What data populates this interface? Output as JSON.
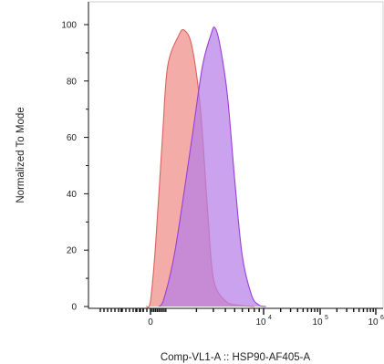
{
  "chart_data": {
    "type": "area",
    "title": "",
    "xlabel": "Comp-VL1-A :: HSP90-AF405-A",
    "ylabel": "Normalized To Mode",
    "xscale": "biexponential",
    "ylim": [
      0,
      100
    ],
    "y_ticks": [
      "0",
      "20",
      "40",
      "60",
      "80",
      "100"
    ],
    "x_ticks": [
      {
        "label": "0",
        "exp": "",
        "value": 0
      },
      {
        "label": "10",
        "exp": "4",
        "value": 10000
      },
      {
        "label": "10",
        "exp": "5",
        "value": 100000
      },
      {
        "label": "10",
        "exp": "6",
        "value": 1000000
      }
    ],
    "grid": false,
    "series": [
      {
        "color": "#f08c86",
        "fill_opacity": 0.72,
        "x": [
          -250,
          0,
          300,
          700,
          1000,
          1300,
          1500,
          1800,
          2200,
          2600,
          3000,
          4000,
          5500,
          8000
        ],
        "y": [
          0,
          2,
          22,
          60,
          85,
          96,
          98,
          92,
          70,
          35,
          10,
          2,
          0.5,
          0
        ]
      },
      {
        "color": "#b57ee6",
        "fill_opacity": 0.72,
        "x": [
          500,
          800,
          1200,
          1800,
          2300,
          2800,
          3100,
          3500,
          4200,
          5000,
          6000,
          7500,
          9000,
          11000
        ],
        "y": [
          0,
          3,
          20,
          60,
          85,
          96,
          99,
          93,
          75,
          45,
          18,
          4,
          0.5,
          0
        ]
      }
    ]
  }
}
